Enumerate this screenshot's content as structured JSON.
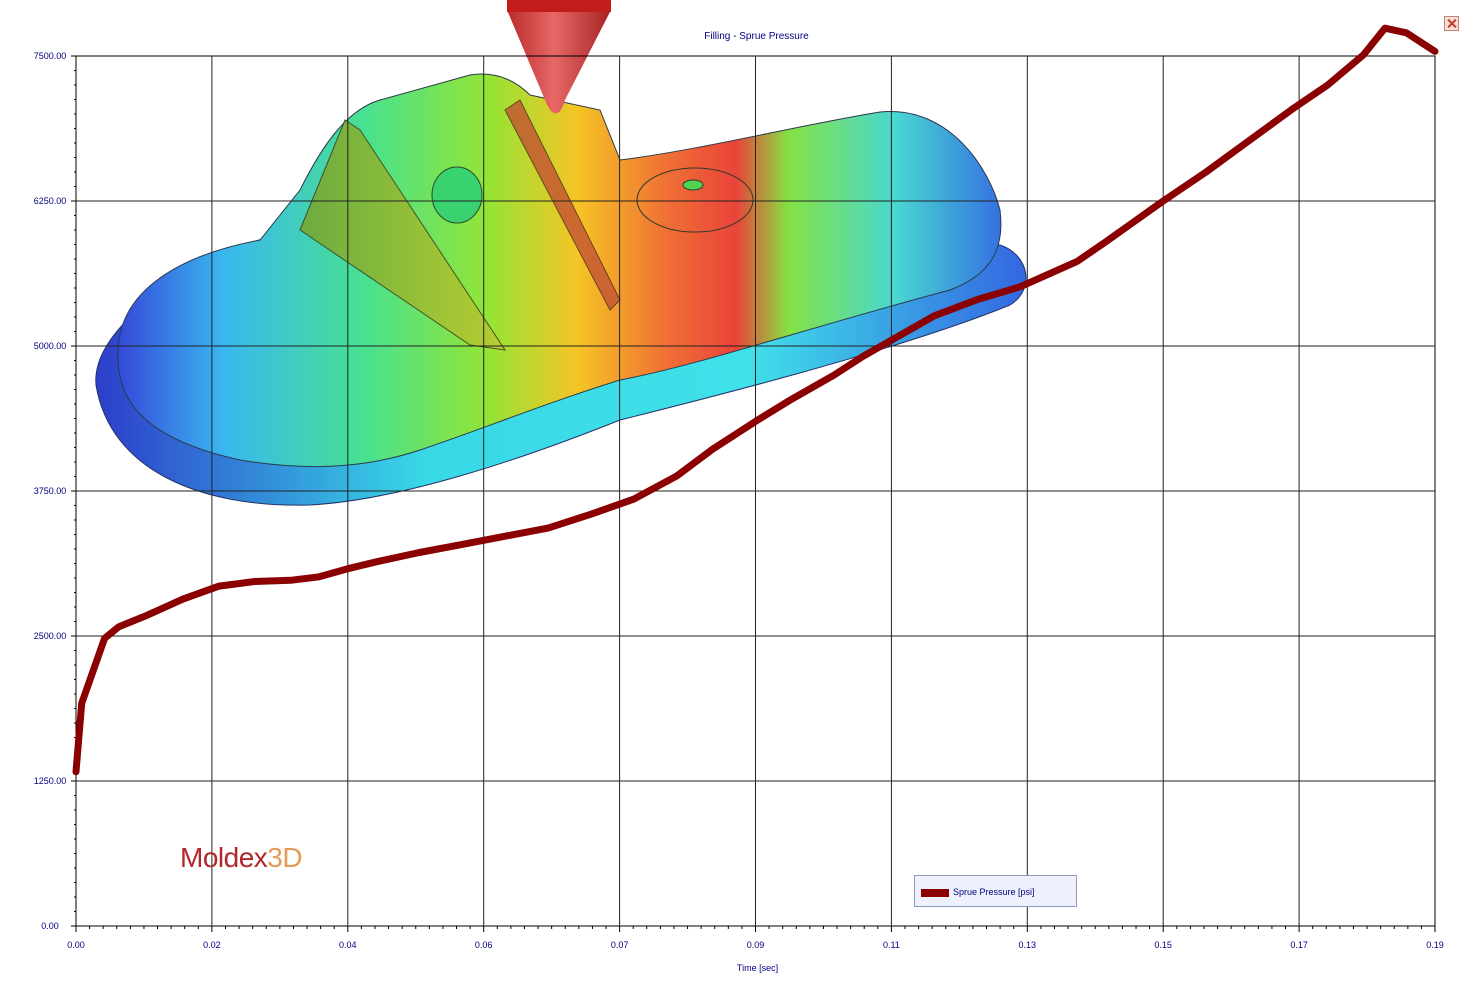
{
  "window": {
    "close_icon": "close-icon"
  },
  "logo": {
    "part1": "Moldex",
    "part2": "3D"
  },
  "chart_data": {
    "type": "line",
    "title": "Filling - Sprue Pressure",
    "xlabel": "Time [sec]",
    "ylabel": "",
    "xlim": [
      0.0,
      0.19
    ],
    "ylim": [
      0,
      7500
    ],
    "x_ticks": [
      "0.00",
      "0.02",
      "0.04",
      "0.06",
      "0.07",
      "0.09",
      "0.11",
      "0.13",
      "0.15",
      "0.17",
      "0.19"
    ],
    "y_ticks": [
      "0.00",
      "1250.00",
      "2500.00",
      "3750.00",
      "5000.00",
      "6250.00",
      "7500.00"
    ],
    "grid": true,
    "legend_position": "bottom-right",
    "series": [
      {
        "name": "Sprue Pressure [psi]",
        "color": "#8b0000",
        "points": [
          [
            0.0,
            1330
          ],
          [
            0.0008,
            1920
          ],
          [
            0.004,
            2480
          ],
          [
            0.006,
            2580
          ],
          [
            0.01,
            2680
          ],
          [
            0.015,
            2820
          ],
          [
            0.02,
            2930
          ],
          [
            0.025,
            2970
          ],
          [
            0.03,
            2980
          ],
          [
            0.034,
            3010
          ],
          [
            0.038,
            3080
          ],
          [
            0.042,
            3140
          ],
          [
            0.048,
            3220
          ],
          [
            0.054,
            3290
          ],
          [
            0.06,
            3360
          ],
          [
            0.066,
            3430
          ],
          [
            0.072,
            3550
          ],
          [
            0.078,
            3680
          ],
          [
            0.084,
            3880
          ],
          [
            0.089,
            4110
          ],
          [
            0.095,
            4350
          ],
          [
            0.1,
            4540
          ],
          [
            0.106,
            4750
          ],
          [
            0.11,
            4910
          ],
          [
            0.116,
            5120
          ],
          [
            0.12,
            5260
          ],
          [
            0.126,
            5400
          ],
          [
            0.132,
            5510
          ],
          [
            0.14,
            5730
          ],
          [
            0.144,
            5900
          ],
          [
            0.152,
            6250
          ],
          [
            0.158,
            6500
          ],
          [
            0.164,
            6770
          ],
          [
            0.17,
            7040
          ],
          [
            0.175,
            7250
          ],
          [
            0.18,
            7510
          ],
          [
            0.183,
            7740
          ],
          [
            0.186,
            7700
          ],
          [
            0.19,
            7540
          ]
        ]
      }
    ]
  }
}
